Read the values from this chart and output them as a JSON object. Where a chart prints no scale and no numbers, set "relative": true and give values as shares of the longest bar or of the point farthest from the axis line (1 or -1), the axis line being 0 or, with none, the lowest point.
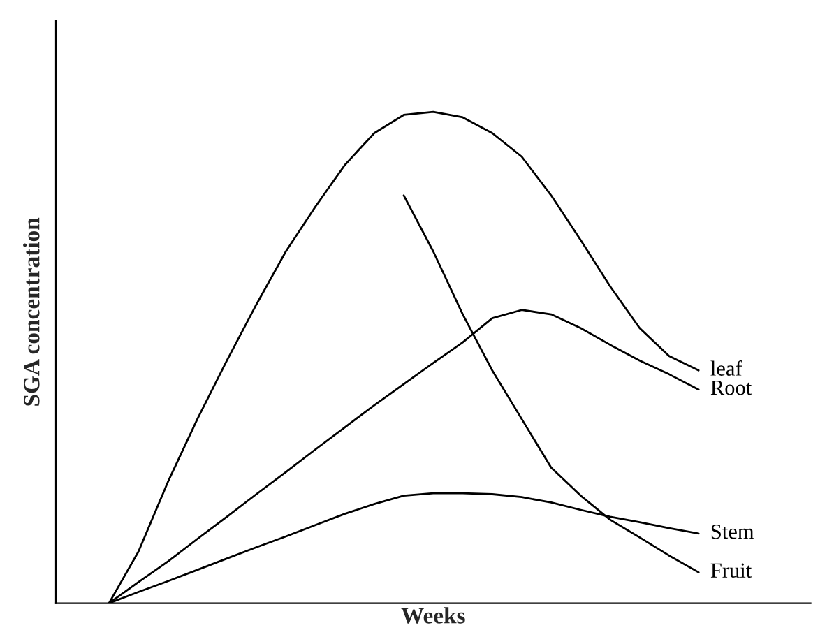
{
  "chart_data": {
    "type": "line",
    "relative": true,
    "xlabel": "Weeks",
    "ylabel": "SGA concentration",
    "categories": [
      null,
      null,
      null,
      null,
      null,
      null,
      null,
      null,
      null,
      null,
      null,
      null,
      null,
      null,
      null,
      null,
      null,
      null,
      null,
      null,
      null
    ],
    "series": [
      {
        "name": "leaf",
        "color": "#000000",
        "values": [
          0,
          0.105,
          0.247,
          0.375,
          0.494,
          0.608,
          0.716,
          0.807,
          0.892,
          0.957,
          0.994,
          1.0,
          0.989,
          0.957,
          0.909,
          0.83,
          0.739,
          0.645,
          0.56,
          0.503,
          0.474
        ]
      },
      {
        "name": "Root",
        "color": "#000000",
        "values": [
          0,
          0.043,
          0.085,
          0.131,
          0.176,
          0.222,
          0.267,
          0.313,
          0.358,
          0.403,
          0.446,
          0.489,
          0.531,
          0.58,
          0.597,
          0.588,
          0.56,
          0.526,
          0.494,
          0.466,
          0.435
        ]
      },
      {
        "name": "Stem",
        "color": "#000000",
        "values": [
          0,
          0.023,
          0.045,
          0.068,
          0.091,
          0.114,
          0.136,
          0.159,
          0.182,
          0.202,
          0.219,
          0.224,
          0.224,
          0.222,
          0.216,
          0.205,
          0.19,
          0.176,
          0.165,
          0.153,
          0.142
        ]
      },
      {
        "name": "Fruit",
        "color": "#000000",
        "values": [
          null,
          null,
          null,
          null,
          null,
          null,
          null,
          null,
          null,
          null,
          0.83,
          0.716,
          0.588,
          0.474,
          0.375,
          0.276,
          0.219,
          0.17,
          0.134,
          0.097,
          0.063
        ]
      }
    ],
    "tick_labels": false,
    "legend": false,
    "marker": "none",
    "line_style": "solid"
  }
}
